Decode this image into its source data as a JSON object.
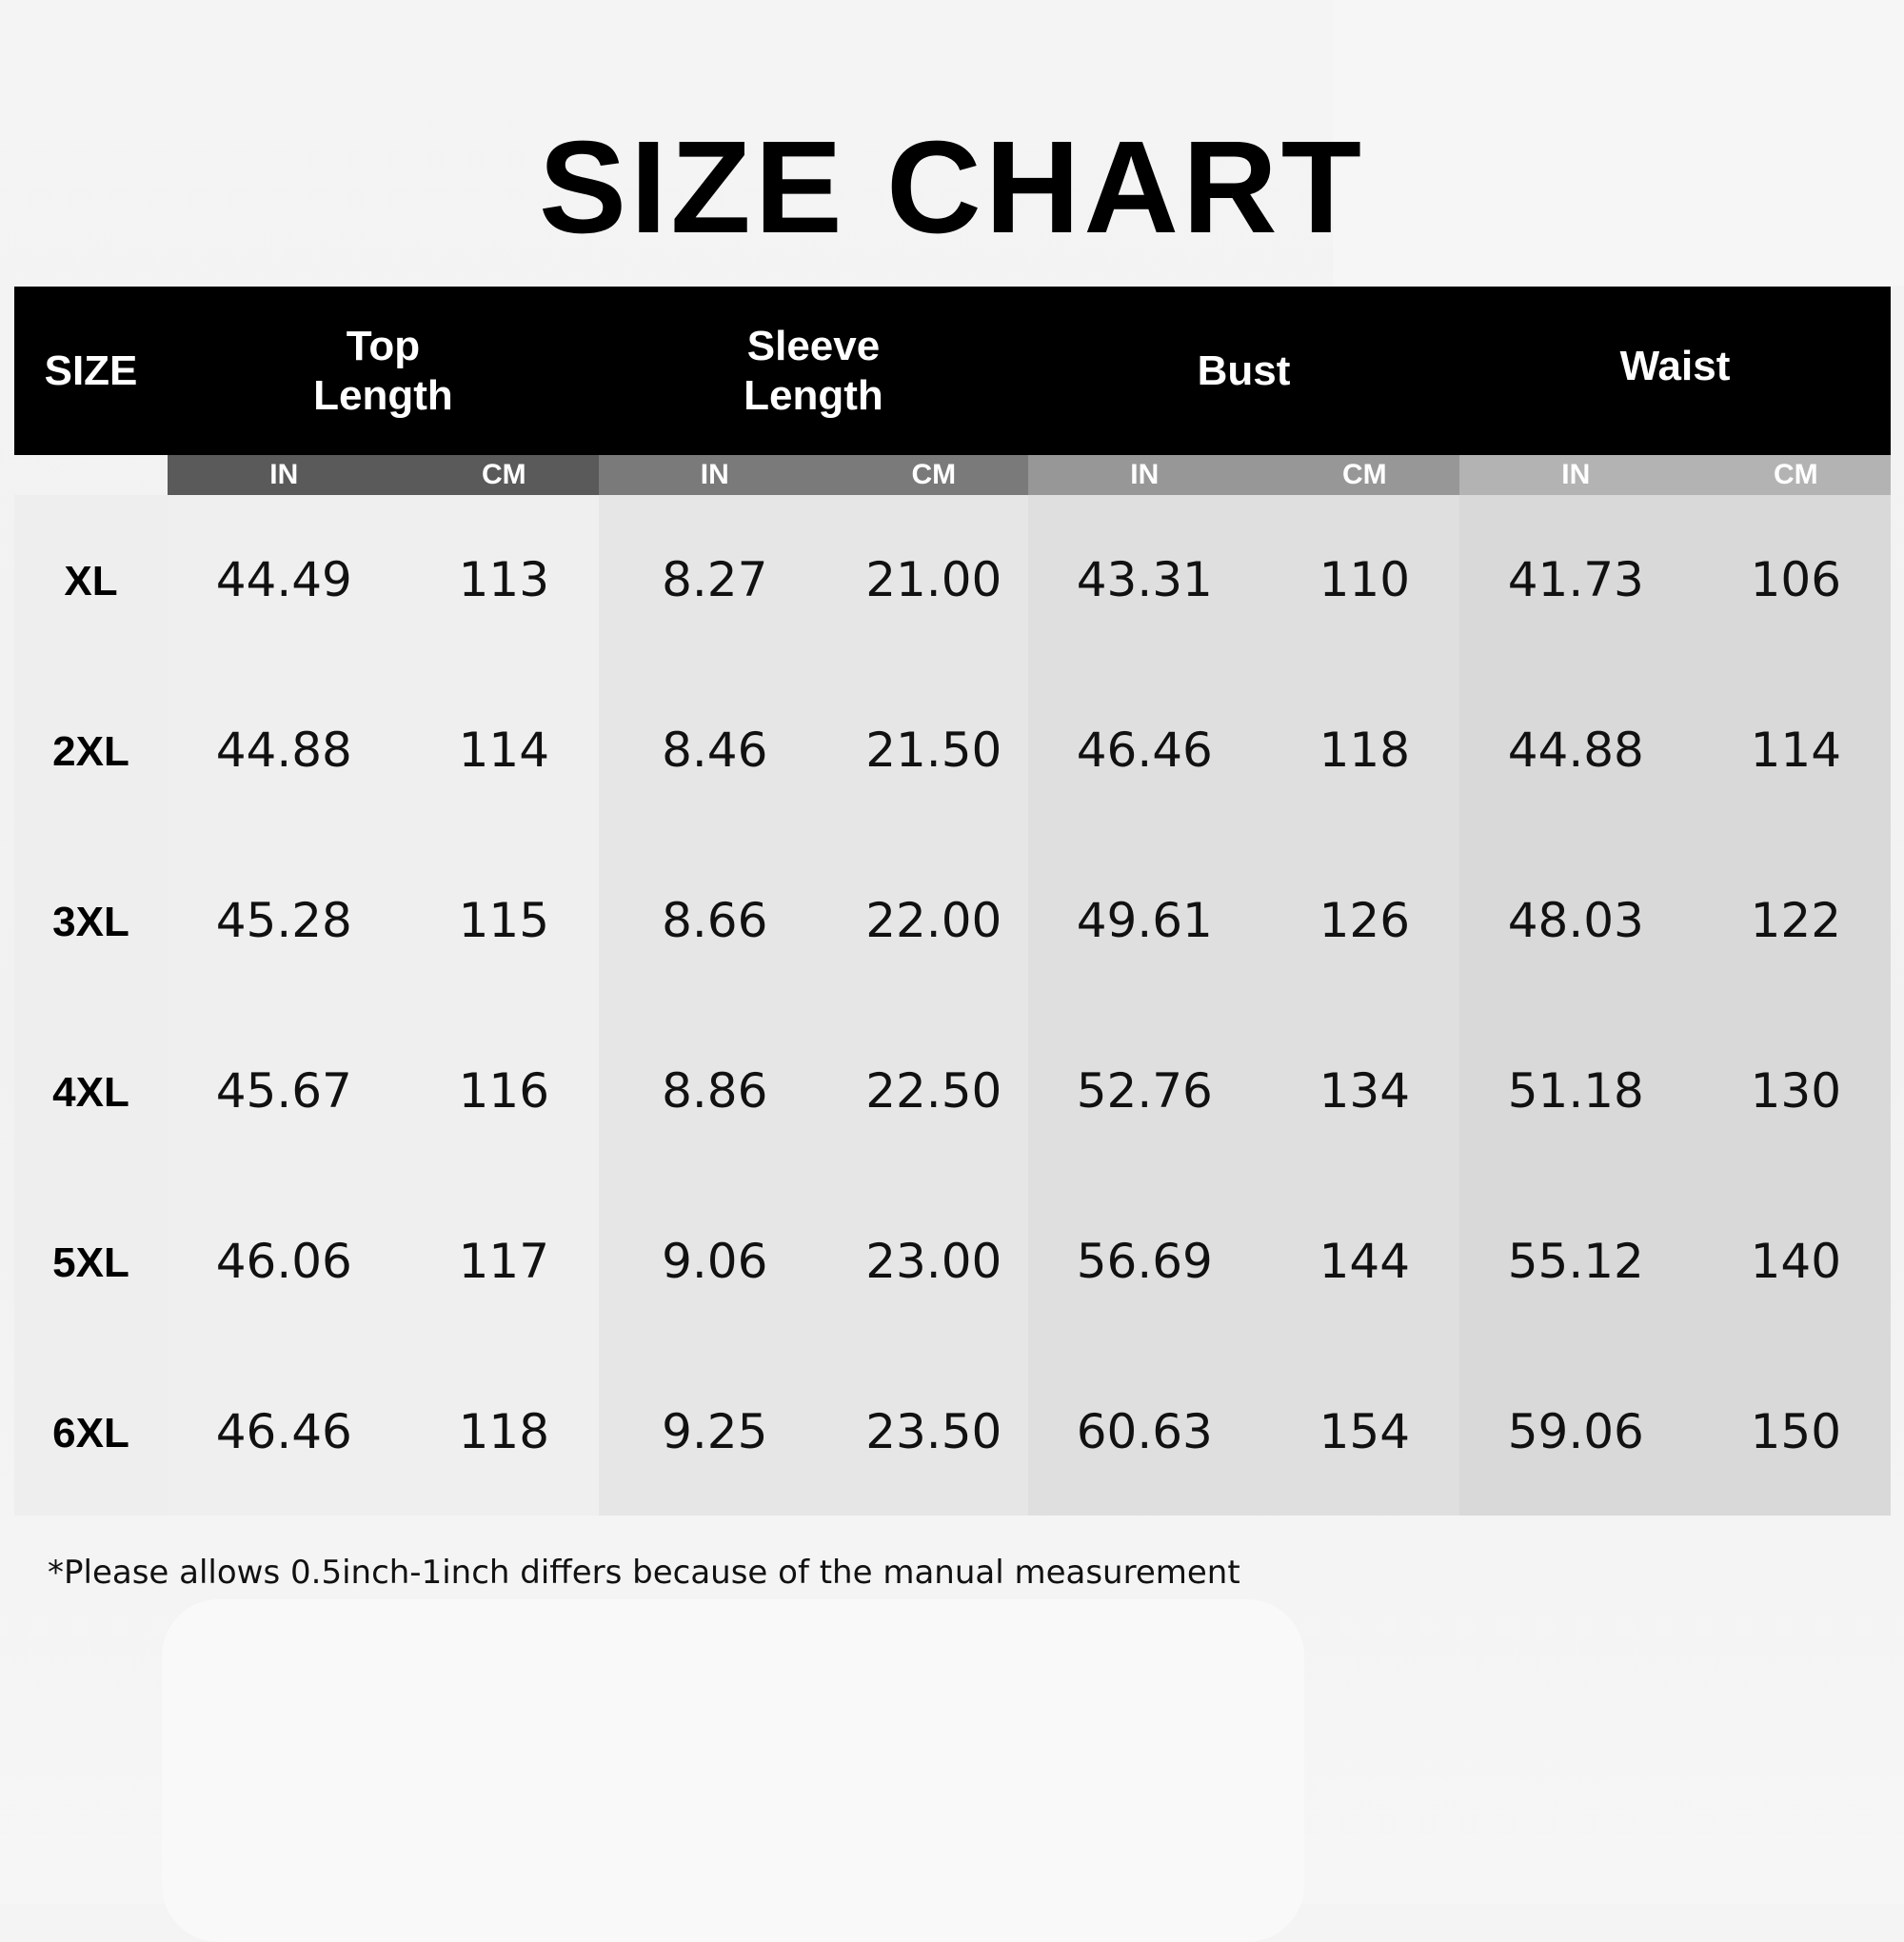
{
  "title": "SIZE CHART",
  "headers": {
    "size": "SIZE",
    "groups": [
      {
        "line1": "Top",
        "line2": "Length"
      },
      {
        "line1": "Sleeve",
        "line2": "Length"
      },
      {
        "line1": "Bust",
        "line2": ""
      },
      {
        "line1": "Waist",
        "line2": ""
      }
    ],
    "unit_in": "IN",
    "unit_cm": "CM"
  },
  "colors": {
    "header_bg": "#000000",
    "subheader": [
      "#5a5a5a",
      "#7a7a7a",
      "#979797",
      "#b3b3b3"
    ],
    "columns": [
      "#eeeeee",
      "#efefef",
      "#e6e6e6",
      "#dfdfdf",
      "#d9d9d9"
    ]
  },
  "rows": [
    {
      "size": "XL",
      "values": [
        "44.49",
        "113",
        "8.27",
        "21.00",
        "43.31",
        "110",
        "41.73",
        "106"
      ]
    },
    {
      "size": "2XL",
      "values": [
        "44.88",
        "114",
        "8.46",
        "21.50",
        "46.46",
        "118",
        "44.88",
        "114"
      ]
    },
    {
      "size": "3XL",
      "values": [
        "45.28",
        "115",
        "8.66",
        "22.00",
        "49.61",
        "126",
        "48.03",
        "122"
      ]
    },
    {
      "size": "4XL",
      "values": [
        "45.67",
        "116",
        "8.86",
        "22.50",
        "52.76",
        "134",
        "51.18",
        "130"
      ]
    },
    {
      "size": "5XL",
      "values": [
        "46.06",
        "117",
        "9.06",
        "23.00",
        "56.69",
        "144",
        "55.12",
        "140"
      ]
    },
    {
      "size": "6XL",
      "values": [
        "46.46",
        "118",
        "9.25",
        "23.50",
        "60.63",
        "154",
        "59.06",
        "150"
      ]
    }
  ],
  "note": "*Please allows 0.5inch-1inch differs because of the manual measurement"
}
